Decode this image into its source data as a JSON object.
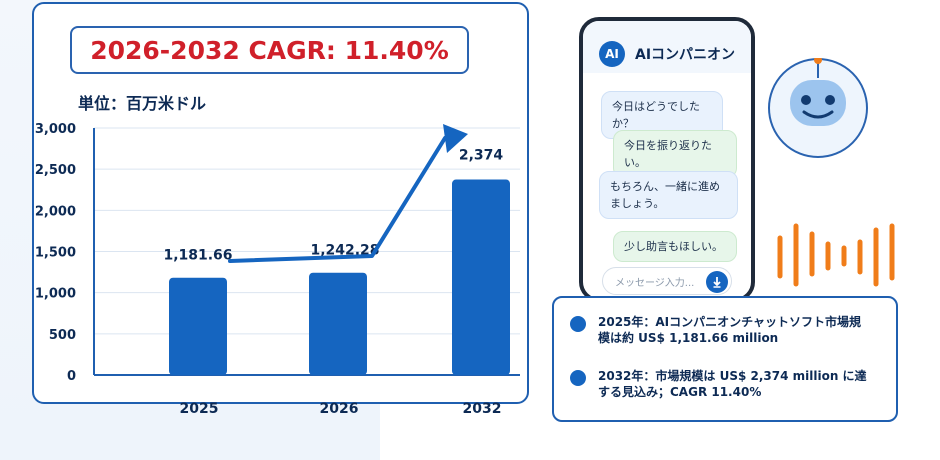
{
  "chart_data": {
    "type": "bar",
    "title": "2026-2032 CAGR: 11.40%",
    "unit_label": "単位：百万米ドル",
    "categories": [
      "2025",
      "2026",
      "2032"
    ],
    "values": [
      1181.66,
      1242.28,
      2374
    ],
    "value_labels": [
      "1,181.66",
      "1,242.28",
      "2,374"
    ],
    "ylim": [
      0,
      3000
    ],
    "yticks": [
      0,
      500,
      1000,
      1500,
      2000,
      2500,
      3000
    ],
    "ytick_labels": [
      "0",
      "500",
      "1,000",
      "1,500",
      "2,000",
      "2,500",
      "3,000"
    ],
    "grid": true,
    "bar_color": "#1565c0",
    "trend_arrow": true
  },
  "phone": {
    "avatar_label": "AI",
    "title": "AIコンパニオン",
    "messages": [
      {
        "role": "ai",
        "text": "今日はどうでしたか？"
      },
      {
        "role": "user",
        "text": "今日を振り返りたい。"
      },
      {
        "role": "ai",
        "text": "もちろん、一緒に進めましょう。"
      },
      {
        "role": "user",
        "text": "少し助言もほしい。"
      }
    ],
    "input_placeholder": "メッセージ入力...",
    "mic_icon": "arrow-down-icon"
  },
  "robot": {
    "icon": "robot-face-icon",
    "accent": "#f07d1a"
  },
  "soundwave": {
    "icon": "soundwave-icon",
    "color": "#f07d1a"
  },
  "info": [
    {
      "text": "2025年：AIコンパニオンチャットソフト市場規模は約 US$ 1,181.66 million"
    },
    {
      "text": "2032年：市場規模は US$ 2,374 million に達する見込み；CAGR 11.40%"
    }
  ]
}
